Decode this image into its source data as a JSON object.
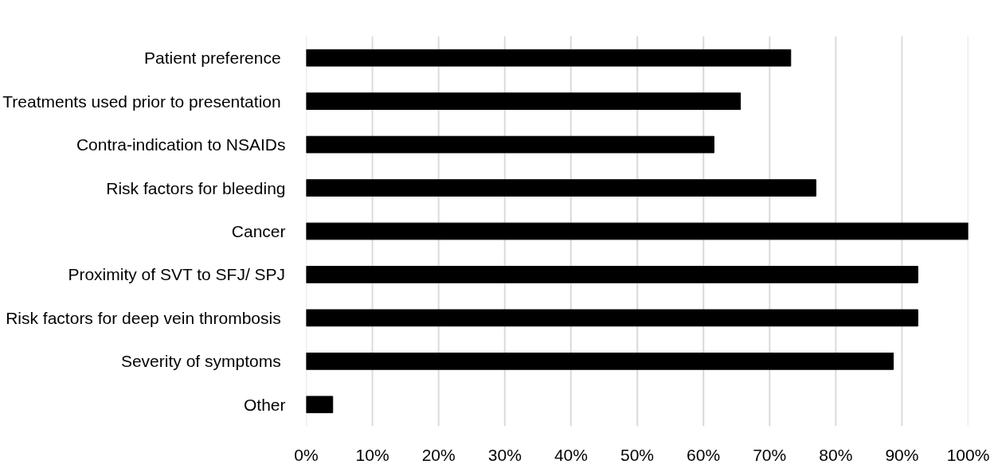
{
  "chart_data": {
    "type": "bar",
    "orientation": "horizontal",
    "categories": [
      "Patient preference ",
      "Treatments used prior to presentation ",
      "Contra-indication to NSAIDs",
      "Risk factors for bleeding",
      "Cancer",
      "Proximity of SVT to SFJ/ SPJ",
      "Risk factors for deep vein thrombosis ",
      "Severity of symptoms ",
      "Other"
    ],
    "values": [
      0.732,
      0.656,
      0.616,
      0.77,
      1.0,
      0.924,
      0.924,
      0.887,
      0.04
    ],
    "color": "#000000",
    "xlim": [
      0,
      1
    ],
    "xticks": [
      {
        "value": 0,
        "label": "0%"
      },
      {
        "value": 0.1,
        "label": "10%"
      },
      {
        "value": 0.2,
        "label": "20%"
      },
      {
        "value": 0.3,
        "label": "30%"
      },
      {
        "value": 0.4,
        "label": "40%"
      },
      {
        "value": 0.5,
        "label": "50%"
      },
      {
        "value": 0.6,
        "label": "60%"
      },
      {
        "value": 0.7,
        "label": "70%"
      },
      {
        "value": 0.8,
        "label": "80%"
      },
      {
        "value": 0.9,
        "label": "90%"
      },
      {
        "value": 1,
        "label": "100%"
      }
    ],
    "grid": "x"
  }
}
